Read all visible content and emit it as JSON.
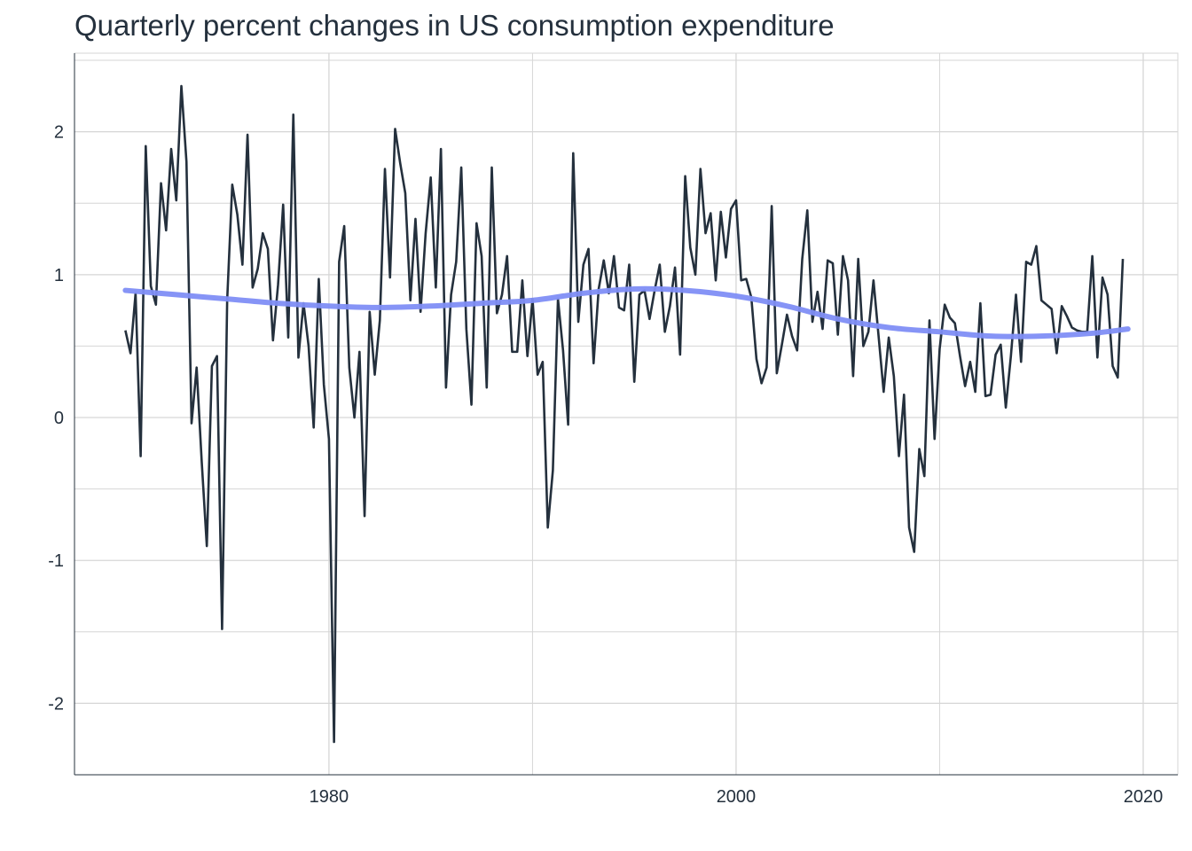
{
  "chart_data": {
    "type": "line",
    "title": "Quarterly percent changes in US consumption expenditure",
    "xlabel": "",
    "ylabel": "",
    "xlim": [
      1967.5,
      2021.7
    ],
    "ylim": [
      -2.5,
      2.55
    ],
    "x_ticks": [
      1980,
      2000,
      2020
    ],
    "x_tick_labels": [
      "1980",
      "2000",
      "2020"
    ],
    "y_ticks": [
      -2,
      -1,
      0,
      1,
      2
    ],
    "y_tick_labels": [
      "-2",
      "-1",
      "0",
      "1",
      "2"
    ],
    "x_start": 1970.0,
    "x_step": 0.25,
    "grid": true,
    "legend": "none",
    "colors": {
      "line": "#24303d",
      "trend": "#7f8ef5",
      "grid": "#d6d6d6",
      "axis": "#24303d"
    },
    "series": [
      {
        "values": [
          0.61,
          0.45,
          0.87,
          -0.27,
          1.9,
          0.92,
          0.79,
          1.64,
          1.31,
          1.88,
          1.52,
          2.32,
          1.79,
          -0.04,
          0.35,
          -0.31,
          -0.9,
          0.36,
          0.43,
          -1.48,
          0.82,
          1.63,
          1.42,
          1.07,
          1.98,
          0.91,
          1.04,
          1.29,
          1.18,
          0.54,
          0.93,
          1.49,
          0.56,
          2.12,
          0.42,
          0.8,
          0.5,
          -0.07,
          0.97,
          0.23,
          -0.15,
          -2.27,
          1.09,
          1.34,
          0.35,
          0.0,
          0.46,
          -0.69,
          0.74,
          0.3,
          0.68,
          1.74,
          0.98,
          2.02,
          1.78,
          1.57,
          0.82,
          1.39,
          0.74,
          1.29,
          1.68,
          0.91,
          1.88,
          0.21,
          0.86,
          1.09,
          1.75,
          0.62,
          0.09,
          1.36,
          1.13,
          0.21,
          1.75,
          0.73,
          0.86,
          1.13,
          0.46,
          0.46,
          0.96,
          0.43,
          0.83,
          0.3,
          0.39,
          -0.77,
          -0.37,
          0.83,
          0.47,
          -0.05,
          1.85,
          0.67,
          1.07,
          1.18,
          0.38,
          0.9,
          1.1,
          0.87,
          1.13,
          0.77,
          0.75,
          1.07,
          0.25,
          0.86,
          0.89,
          0.69,
          0.89,
          1.07,
          0.6,
          0.78,
          1.05,
          0.44,
          1.69,
          1.19,
          1.0,
          1.74,
          1.29,
          1.43,
          0.96,
          1.44,
          1.12,
          1.46,
          1.52,
          0.96,
          0.97,
          0.84,
          0.41,
          0.24,
          0.35,
          1.48,
          0.31,
          0.51,
          0.72,
          0.57,
          0.47,
          1.11,
          1.45,
          0.67,
          0.88,
          0.62,
          1.1,
          1.08,
          0.58,
          1.13,
          0.96,
          0.29,
          1.11,
          0.5,
          0.6,
          0.96,
          0.57,
          0.18,
          0.56,
          0.29,
          -0.27,
          0.16,
          -0.77,
          -0.94,
          -0.22,
          -0.41,
          0.68,
          -0.15,
          0.48,
          0.79,
          0.7,
          0.66,
          0.43,
          0.22,
          0.39,
          0.18,
          0.8,
          0.15,
          0.16,
          0.44,
          0.51,
          0.07,
          0.43,
          0.86,
          0.39,
          1.09,
          1.07,
          1.2,
          0.82,
          0.79,
          0.76,
          0.45,
          0.78,
          0.71,
          0.63,
          0.61,
          0.6,
          0.6,
          1.13,
          0.42,
          0.98,
          0.86,
          0.36,
          0.28,
          1.11
        ]
      }
    ],
    "trend": {
      "x": [
        1970,
        1972.5,
        1975,
        1977.5,
        1980,
        1982.5,
        1985,
        1987.5,
        1990,
        1992.5,
        1995,
        1997.5,
        2000,
        2002.5,
        2005,
        2007.5,
        2010,
        2012.5,
        2015,
        2017.5,
        2019.25
      ],
      "y": [
        0.89,
        0.86,
        0.83,
        0.8,
        0.78,
        0.77,
        0.78,
        0.8,
        0.82,
        0.87,
        0.9,
        0.89,
        0.85,
        0.78,
        0.69,
        0.63,
        0.6,
        0.57,
        0.57,
        0.59,
        0.62
      ]
    }
  }
}
